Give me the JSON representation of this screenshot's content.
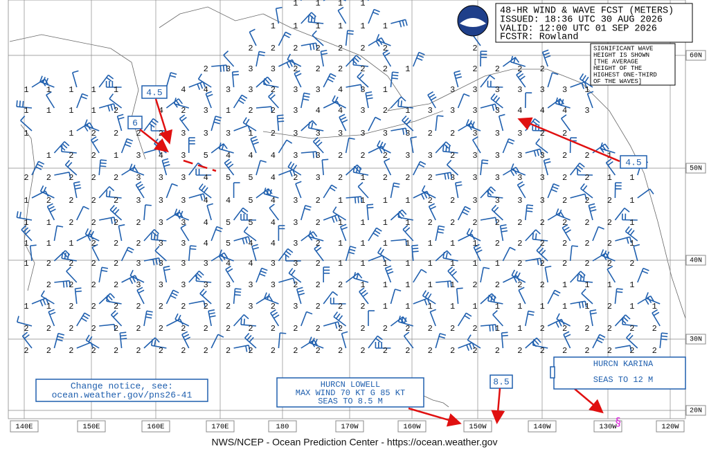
{
  "header": {
    "title": "48-HR WIND & WAVE FCST (METERS)",
    "issued": "ISSUED: 18:36 UTC 30 AUG 2026",
    "valid": "VALID:  12:00 UTC 01 SEP 2026",
    "forecaster": "FCSTR:  Rowland"
  },
  "note": [
    "SIGNIFICANT WAVE",
    "HEIGHT IS SHOWN",
    "[THE AVERAGE",
    "HEIGHT OF THE",
    "HIGHEST ONE-THIRD",
    "OF THE WAVES]"
  ],
  "lat_labels": [
    "60N",
    "50N",
    "40N",
    "30N",
    "20N"
  ],
  "lon_labels": [
    "140E",
    "150E",
    "160E",
    "170E",
    "180",
    "170W",
    "160W",
    "150W",
    "140W",
    "130W",
    "120W"
  ],
  "callouts": [
    "4.5",
    "6",
    "4.5",
    "8.5"
  ],
  "hurricane_lowell": [
    "HURCN LOWELL",
    "MAX WIND 70 KT G 85 KT",
    "SEAS TO 8.5 M"
  ],
  "hurricane_karina": [
    "HURCN KARINA",
    "SEAS TO 12 M"
  ],
  "change_notice": [
    "Change notice, see:",
    "ocean.weather.gov/pns26-41"
  ],
  "footer": "NWS/NCEP - Ocean Prediction Center - https://ocean.weather.gov",
  "wave_heights": [
    [
      null,
      null,
      null,
      null,
      null,
      null,
      null,
      null,
      null,
      null,
      null,
      null,
      1,
      1,
      1,
      1
    ],
    [
      null,
      null,
      null,
      null,
      null,
      null,
      null,
      null,
      null,
      null,
      null,
      1,
      1,
      1,
      1,
      1,
      1
    ],
    [
      null,
      null,
      null,
      null,
      null,
      null,
      null,
      null,
      null,
      null,
      2,
      2,
      2,
      2,
      2,
      2,
      2,
      null,
      null,
      null,
      2
    ],
    [
      null,
      null,
      null,
      null,
      null,
      null,
      null,
      null,
      2,
      3,
      3,
      3,
      2,
      2,
      2,
      2,
      2,
      1,
      null,
      null,
      2,
      2,
      2,
      2
    ],
    [
      1,
      1,
      1,
      1,
      1,
      null,
      2,
      4,
      4,
      3,
      3,
      2,
      3,
      3,
      4,
      3,
      1,
      null,
      null,
      3,
      3,
      3,
      3,
      3,
      3,
      1
    ],
    [
      1,
      1,
      1,
      1,
      2,
      null,
      4,
      2,
      3,
      1,
      2,
      2,
      3,
      4,
      4,
      3,
      2,
      1,
      3,
      3,
      3,
      3,
      4,
      4,
      4,
      3
    ],
    [
      1,
      null,
      1,
      2,
      2,
      2,
      2,
      3,
      3,
      3,
      1,
      2,
      3,
      3,
      3,
      3,
      3,
      3,
      2,
      2,
      3,
      3,
      3,
      2,
      2
    ],
    [
      null,
      1,
      2,
      2,
      1,
      3,
      4,
      3,
      5,
      4,
      4,
      4,
      3,
      3,
      2,
      2,
      2,
      3,
      3,
      2,
      3,
      3,
      3,
      3,
      2,
      2,
      1
    ],
    [
      2,
      2,
      2,
      2,
      2,
      3,
      3,
      3,
      4,
      5,
      5,
      4,
      2,
      3,
      2,
      1,
      2,
      2,
      2,
      3,
      3,
      3,
      3,
      3,
      2,
      2,
      1,
      1
    ],
    [
      1,
      2,
      2,
      2,
      2,
      3,
      3,
      3,
      4,
      4,
      5,
      4,
      3,
      2,
      1,
      1,
      1,
      1,
      2,
      2,
      3,
      3,
      3,
      3,
      2,
      2,
      2,
      1
    ],
    [
      1,
      1,
      2,
      2,
      2,
      2,
      3,
      3,
      4,
      5,
      5,
      4,
      3,
      2,
      1,
      1,
      1,
      1,
      2,
      2,
      2,
      2,
      2,
      2,
      2,
      2,
      2,
      1
    ],
    [
      1,
      1,
      1,
      2,
      2,
      2,
      3,
      3,
      4,
      5,
      4,
      4,
      3,
      2,
      1,
      1,
      1,
      1,
      1,
      1,
      1,
      2,
      2,
      2,
      2,
      2,
      2,
      1
    ],
    [
      1,
      2,
      2,
      2,
      2,
      3,
      3,
      3,
      3,
      4,
      4,
      3,
      3,
      2,
      1,
      1,
      1,
      1,
      1,
      1,
      1,
      1,
      2,
      2,
      2,
      2,
      2,
      2
    ],
    [
      null,
      2,
      2,
      2,
      2,
      3,
      3,
      3,
      3,
      3,
      3,
      3,
      2,
      2,
      2,
      1,
      1,
      1,
      1,
      1,
      2,
      2,
      2,
      2,
      1,
      1,
      1,
      1
    ],
    [
      1,
      1,
      2,
      2,
      2,
      2,
      2,
      2,
      2,
      2,
      3,
      2,
      3,
      2,
      2,
      2,
      1,
      1,
      1,
      1,
      1,
      1,
      1,
      1,
      1,
      1,
      2,
      1,
      1
    ],
    [
      2,
      2,
      2,
      2,
      2,
      2,
      2,
      2,
      2,
      2,
      2,
      2,
      2,
      2,
      2,
      2,
      2,
      2,
      2,
      2,
      2,
      1,
      1,
      2,
      2,
      2,
      2,
      2,
      2
    ],
    [
      2,
      2,
      2,
      2,
      2,
      2,
      2,
      2,
      2,
      2,
      2,
      2,
      2,
      2,
      2,
      2,
      2,
      2,
      2,
      2,
      2,
      2,
      2,
      2,
      2,
      2,
      2,
      2,
      2
    ]
  ]
}
